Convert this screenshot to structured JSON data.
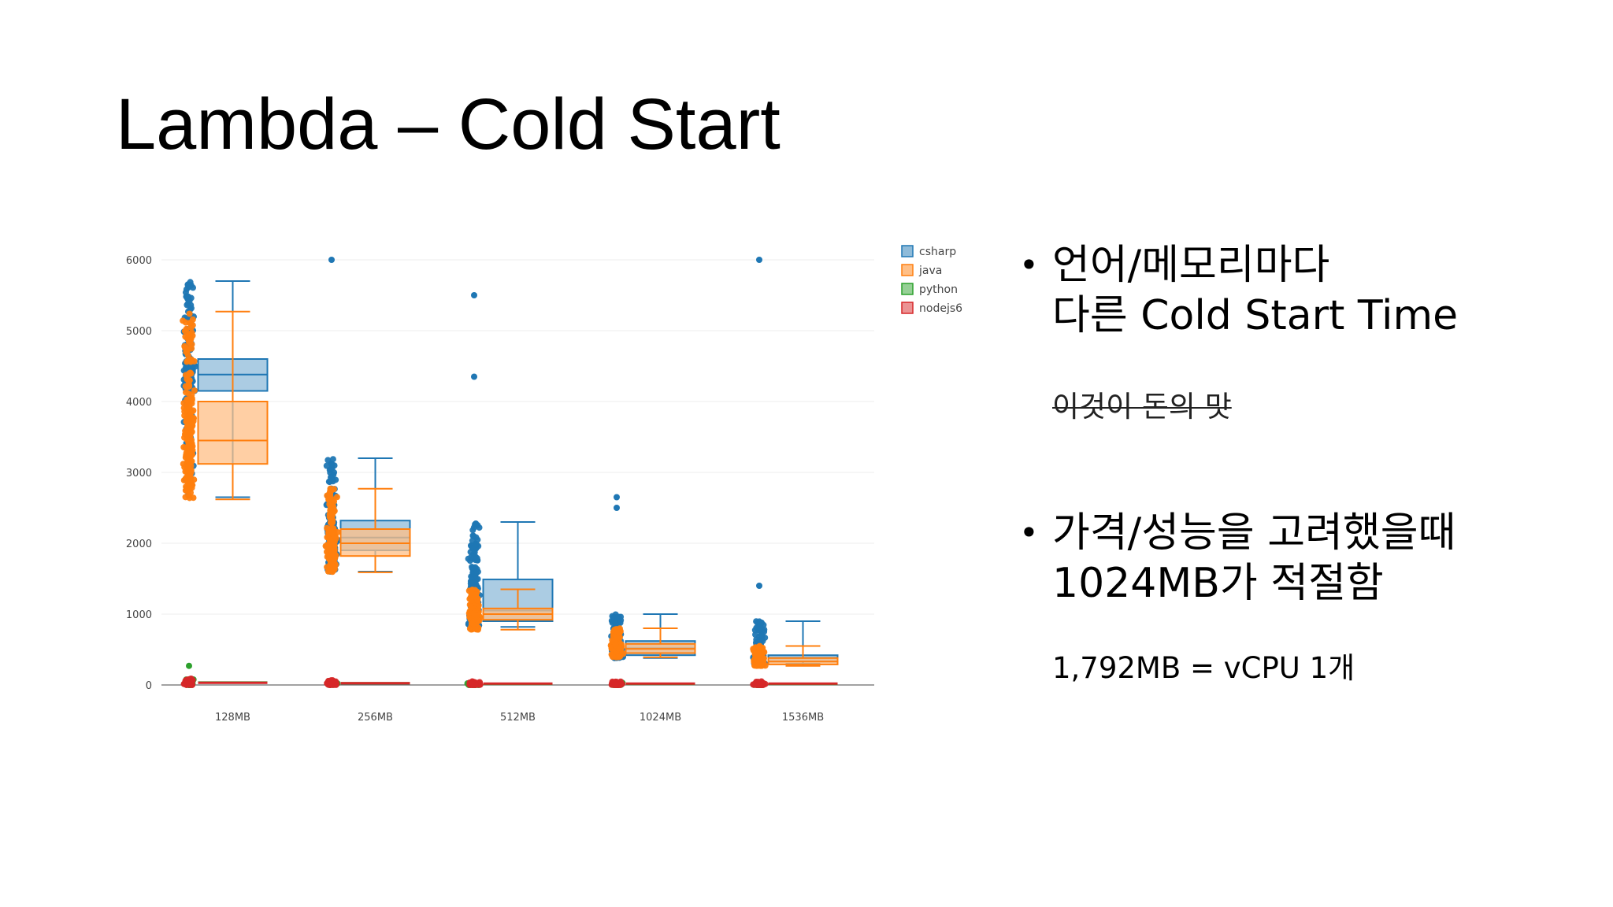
{
  "slide": {
    "title": "Lambda – Cold Start"
  },
  "bullets": [
    {
      "lines": [
        "언어/메모리마다",
        "다른 Cold Start Time"
      ],
      "note": "이것이 돈의 맛",
      "note_strikethrough": true
    },
    {
      "lines": [
        "가격/성능을 고려했을때",
        "1024MB가 적절함"
      ],
      "note": "1,792MB = vCPU 1개",
      "note_strikethrough": false
    }
  ],
  "chart_data": {
    "type": "box",
    "title": "",
    "xlabel": "",
    "ylabel": "",
    "ylim": [
      0,
      6000
    ],
    "yticks": [
      "0",
      "1000",
      "2000",
      "3000",
      "4000",
      "5000",
      "6000"
    ],
    "grid": true,
    "legend_position": "top-right",
    "categories": [
      "128MB",
      "256MB",
      "512MB",
      "1024MB",
      "1536MB"
    ],
    "series": [
      {
        "name": "csharp",
        "color": "#1f77b4",
        "fill": "#8fbbd9",
        "boxes": [
          {
            "min": 2650,
            "q1": 4150,
            "median": 4380,
            "q3": 4600,
            "max": 5700
          },
          {
            "min": 1600,
            "q1": 1900,
            "median": 2080,
            "q3": 2320,
            "max": 3200
          },
          {
            "min": 820,
            "q1": 900,
            "median": 1050,
            "q3": 1490,
            "max": 2300
          },
          {
            "min": 380,
            "q1": 420,
            "median": 520,
            "q3": 620,
            "max": 1000
          },
          {
            "min": 300,
            "q1": 330,
            "median": 380,
            "q3": 420,
            "max": 900
          }
        ],
        "outliers": [
          [],
          [
            6000
          ],
          [
            4350,
            5500
          ],
          [
            2500,
            2650
          ],
          [
            1400,
            6000
          ]
        ]
      },
      {
        "name": "java",
        "color": "#ff7f0e",
        "fill": "#ffbf86",
        "boxes": [
          {
            "min": 2620,
            "q1": 3120,
            "median": 3450,
            "q3": 4000,
            "max": 5270
          },
          {
            "min": 1590,
            "q1": 1820,
            "median": 2000,
            "q3": 2200,
            "max": 2770
          },
          {
            "min": 780,
            "q1": 920,
            "median": 1000,
            "q3": 1080,
            "max": 1350
          },
          {
            "min": 390,
            "q1": 450,
            "median": 510,
            "q3": 580,
            "max": 800
          },
          {
            "min": 270,
            "q1": 290,
            "median": 330,
            "q3": 380,
            "max": 550
          }
        ],
        "outliers": [
          [],
          [],
          [],
          [],
          []
        ]
      },
      {
        "name": "python",
        "color": "#2ca02c",
        "fill": "#96d096",
        "boxes": [
          {
            "min": 0,
            "q1": 10,
            "median": 20,
            "q3": 35,
            "max": 80
          },
          {
            "min": 0,
            "q1": 8,
            "median": 15,
            "q3": 25,
            "max": 50
          },
          {
            "min": 0,
            "q1": 5,
            "median": 10,
            "q3": 15,
            "max": 30
          },
          {
            "min": 0,
            "q1": 5,
            "median": 10,
            "q3": 15,
            "max": 30
          },
          {
            "min": 0,
            "q1": 5,
            "median": 10,
            "q3": 15,
            "max": 30
          }
        ],
        "outliers": [
          [
            270
          ],
          [],
          [],
          [],
          []
        ]
      },
      {
        "name": "nodejs6",
        "color": "#d62728",
        "fill": "#eb9394",
        "boxes": [
          {
            "min": 0,
            "q1": 10,
            "median": 20,
            "q3": 30,
            "max": 90
          },
          {
            "min": 0,
            "q1": 8,
            "median": 15,
            "q3": 25,
            "max": 70
          },
          {
            "min": 0,
            "q1": 5,
            "median": 10,
            "q3": 20,
            "max": 50
          },
          {
            "min": 0,
            "q1": 5,
            "median": 10,
            "q3": 20,
            "max": 50
          },
          {
            "min": 0,
            "q1": 5,
            "median": 10,
            "q3": 20,
            "max": 50
          }
        ],
        "outliers": [
          [],
          [],
          [],
          [],
          []
        ]
      }
    ]
  }
}
